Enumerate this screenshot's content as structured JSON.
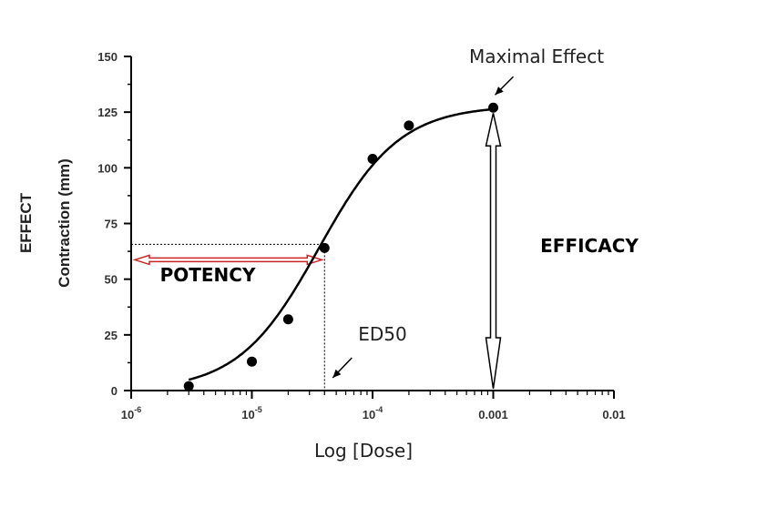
{
  "chart_data": {
    "type": "line",
    "xlabel": "Log [Dose]",
    "ylabel": "Contraction (mm)",
    "ylabel_outer": "EFFECT",
    "x_scale": "log",
    "xlim": [
      1e-06,
      0.01
    ],
    "ylim": [
      0,
      150
    ],
    "y_ticks": [
      0,
      25,
      50,
      75,
      100,
      125,
      150
    ],
    "x_ticks": [
      {
        "value": 1e-06,
        "base": "10",
        "exp": "-6"
      },
      {
        "value": 1e-05,
        "base": "10",
        "exp": "-5"
      },
      {
        "value": 0.0001,
        "base": "10",
        "exp": "-4"
      },
      {
        "value": 0.001,
        "base": "0.001",
        "exp": ""
      },
      {
        "value": 0.01,
        "base": "0.01",
        "exp": ""
      }
    ],
    "grid": false,
    "series": [
      {
        "x": [
          3e-06,
          1e-05,
          2e-05,
          4e-05,
          0.0001,
          0.0002,
          0.001
        ],
        "y": [
          2,
          13,
          32,
          64,
          104,
          119,
          127
        ]
      }
    ],
    "fit_curve": {
      "bottom": 0,
      "top": 128,
      "ec50": 3.6e-05,
      "hill": 1.3
    },
    "annotations": {
      "maximal_effect": "Maximal Effect",
      "ed50": "ED50",
      "potency": "POTENCY",
      "efficacy": "EFFICACY"
    },
    "colors": {
      "potency_arrow": "#cc2222",
      "ink": "#000000"
    }
  }
}
